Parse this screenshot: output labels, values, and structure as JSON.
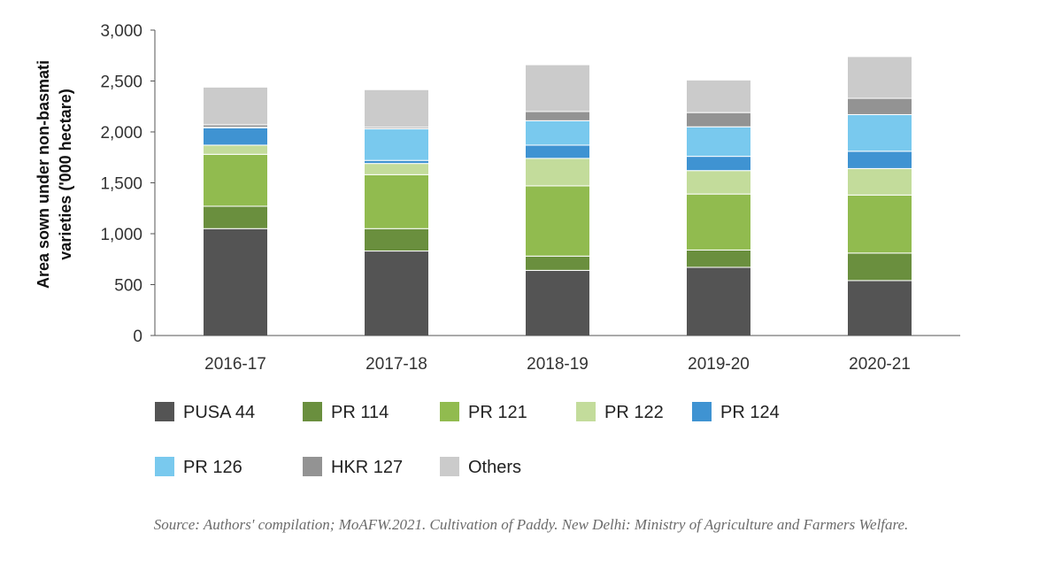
{
  "chart_data": {
    "type": "bar",
    "stacked": true,
    "title": "",
    "xlabel": "",
    "ylabel_lines": [
      "Area sown under non-basmati",
      "varieties ('000 hectare)"
    ],
    "ylim": [
      0,
      3000
    ],
    "yticks": [
      0,
      500,
      1000,
      1500,
      2000,
      2500,
      3000
    ],
    "ytick_labels": [
      "0",
      "500",
      "1,000",
      "1,500",
      "2,000",
      "2,500",
      "3,000"
    ],
    "grid": false,
    "legend_position": "bottom",
    "categories": [
      "2016-17",
      "2017-18",
      "2018-19",
      "2019-20",
      "2020-21"
    ],
    "series": [
      {
        "name": "PUSA 44",
        "color": "#545454",
        "values": [
          1050,
          830,
          640,
          670,
          540
        ]
      },
      {
        "name": "PR 114",
        "color": "#6a8f3e",
        "values": [
          220,
          220,
          140,
          170,
          270
        ]
      },
      {
        "name": "PR 121",
        "color": "#91bb4f",
        "values": [
          510,
          530,
          690,
          550,
          570
        ]
      },
      {
        "name": "PR 122",
        "color": "#c3dc9b",
        "values": [
          90,
          110,
          270,
          230,
          260
        ]
      },
      {
        "name": "PR 124",
        "color": "#3f93d2",
        "values": [
          170,
          30,
          130,
          140,
          170
        ]
      },
      {
        "name": "PR 126",
        "color": "#79c9ee",
        "values": [
          5,
          310,
          240,
          290,
          360
        ]
      },
      {
        "name": "HKR 127",
        "color": "#939393",
        "values": [
          25,
          15,
          90,
          140,
          160
        ]
      },
      {
        "name": "Others",
        "color": "#cbcbcb",
        "values": [
          370,
          370,
          460,
          320,
          410
        ]
      }
    ]
  },
  "source_note": "Source: Authors' compilation; MoAFW.2021. Cultivation of Paddy. New Delhi: Ministry of Agriculture and Farmers Welfare."
}
